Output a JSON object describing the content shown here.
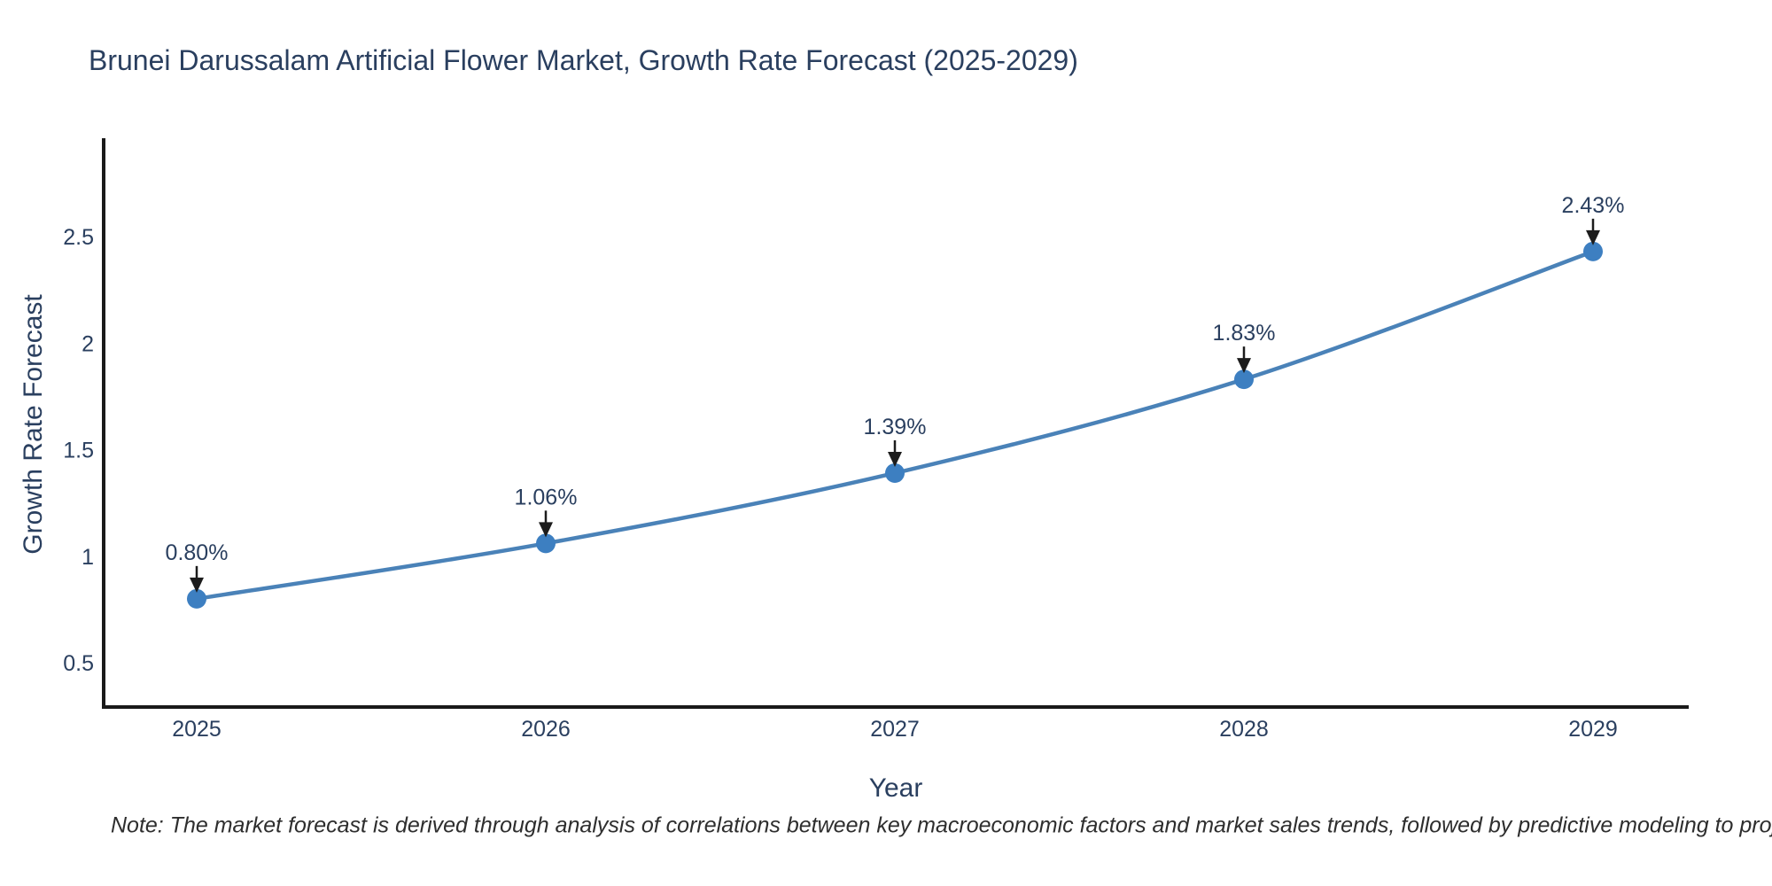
{
  "page": {
    "background": "#ffffff"
  },
  "chart_data": {
    "type": "line",
    "title": "Brunei Darussalam Artificial Flower Market, Growth Rate Forecast (2025-2029)",
    "xlabel": "Year",
    "ylabel": "Growth Rate Forecast",
    "x": [
      2025,
      2026,
      2027,
      2028,
      2029
    ],
    "x_tick_labels": [
      "2025",
      "2026",
      "2027",
      "2028",
      "2029"
    ],
    "series": [
      {
        "name": "Growth Rate Forecast",
        "values": [
          0.8,
          1.06,
          1.39,
          1.83,
          2.43
        ]
      }
    ],
    "point_labels": [
      "0.80%",
      "1.06%",
      "1.39%",
      "1.83%",
      "2.43%"
    ],
    "yticks": [
      0.5,
      1,
      1.5,
      2,
      2.5
    ],
    "ytick_labels": [
      "0.5",
      "1",
      "1.5",
      "2",
      "2.5"
    ],
    "ylim": [
      0.28,
      2.96
    ],
    "grid": false,
    "legend_position": "none",
    "line_shape": "spline",
    "annotation_arrows": true,
    "colors": {
      "line": "#4a82b8",
      "marker": "#3d7fc1",
      "text": "#2a3f5f",
      "axis": "#1a1a1a",
      "arrow": "#1c1c1c",
      "note_text": "#2e2e2e",
      "background": "#ffffff"
    }
  },
  "note": {
    "text": "Note: The market forecast is derived through analysis of correlations between key macroeconomic factors and market sales trends, followed by predictive modeling to project future sales"
  }
}
